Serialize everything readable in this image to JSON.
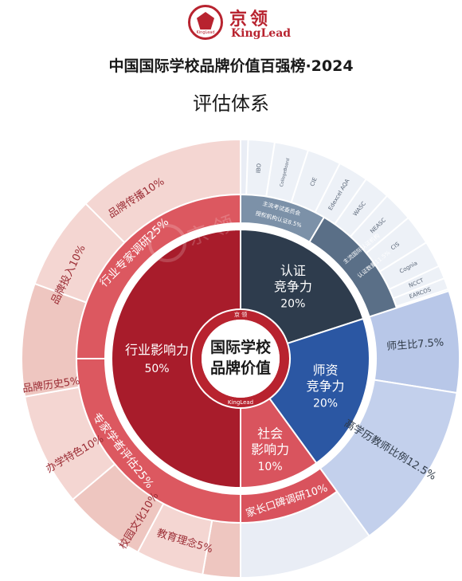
{
  "header": {
    "logo_cn": "京领",
    "logo_en": "KingLead",
    "logo_mark_text": "KingLead",
    "title": "中国国际学校品牌价值百强榜·2024",
    "subtitle": "评估体系"
  },
  "center": {
    "line1": "国际学校",
    "line2": "品牌价值",
    "ring_top": "京 领",
    "ring_bottom": "KingLead"
  },
  "watermark": "京 领",
  "inner": [
    {
      "name": "认证竞争力",
      "l1": "认证",
      "l2": "竞争力",
      "pct": "20%",
      "value": 20,
      "color": "#2e3c4d"
    },
    {
      "name": "师资竞争力",
      "l1": "师资",
      "l2": "竞争力",
      "pct": "20%",
      "value": 20,
      "color": "#2b57a3"
    },
    {
      "name": "社会影响力",
      "l1": "社会",
      "l2": "影响力",
      "pct": "10%",
      "value": 10,
      "color": "#d9545e"
    },
    {
      "name": "行业影响力",
      "l1": "行业影响力",
      "l2": "",
      "pct": "50%",
      "value": 50,
      "color": "#a81c2b"
    }
  ],
  "middle": [
    {
      "label": "主流考试委员会授权机构认证8.5%",
      "l1": "主流考试委员会",
      "l2": "授权机构认证8.5%",
      "value": 8.5,
      "color": "#7c91a8"
    },
    {
      "label": "主流国际认证机构认证数量11.5%",
      "l1": "主流国际认证机构",
      "l2": "认证数量11.5%",
      "value": 11.5,
      "color": "#5a6f87"
    },
    {
      "label": "师生比7.5%",
      "value": 7.5,
      "color": "#aabbe0"
    },
    {
      "label": "高学历教师比例12.5%",
      "value": 12.5,
      "color": "#b7c6e8"
    },
    {
      "label": "家长口碑调研10%",
      "value": 10,
      "color": "#d9535d"
    },
    {
      "label": "专家学者评估25%",
      "value": 25,
      "color": "#dc5860"
    },
    {
      "label": "行业专家调研25%",
      "value": 25,
      "color": "#dc5860"
    }
  ],
  "outer_items": [
    "IBO",
    "CollegeBoard",
    "CIE",
    "Edexcel AQA",
    "WASC",
    "NEASC",
    "CIS",
    "Cognia",
    "NCCT",
    "EARCOS",
    "品牌历史5%",
    "办学特色10%",
    "校园文化10%",
    "教育理念5%",
    "品牌投入10%",
    "品牌传播10%"
  ],
  "colors": {
    "outer_grey": "#e8ecf3",
    "outer_pink": "#f4d6d2",
    "outer_pink_dark": "#eec6c0",
    "text_dark": "#2f3a47",
    "text_pink": "#9b2c34",
    "brand": "#b8232f"
  }
}
